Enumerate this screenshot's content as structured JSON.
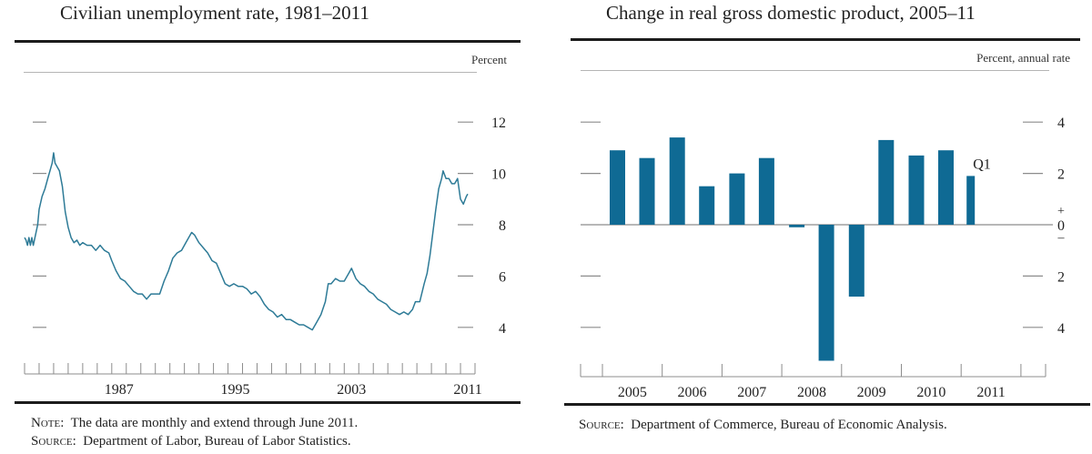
{
  "colors": {
    "line": "#2e7b97",
    "bar": "#0f6a94",
    "axis": "#8c8c8c",
    "rule": "#1c1c1c"
  },
  "left": {
    "title": "Civilian unemployment rate, 1981–2011",
    "unit_label": "Percent",
    "note_label": "Note:",
    "note_text": "The data are monthly and extend through June 2011.",
    "source_label": "Source:",
    "source_text": "Department of Labor, Bureau of Labor Statistics."
  },
  "right": {
    "title": "Change in real gross domestic product, 2005–11",
    "unit_label": "Percent, annual rate",
    "source_label": "Source:",
    "source_text": "Department of Commerce, Bureau of Economic Analysis.",
    "annotation": "Q1"
  },
  "chart_data": [
    {
      "type": "line",
      "title": "Civilian unemployment rate, 1981–2011",
      "ylabel": "Percent",
      "xlabel": "",
      "xlim": [
        1981,
        2012
      ],
      "ylim": [
        2.6,
        13.3
      ],
      "y_ticks": [
        4,
        6,
        8,
        10,
        12
      ],
      "x_tick_labels": [
        "1987",
        "1995",
        "2003",
        "2011"
      ],
      "x_tick_label_years": [
        1987,
        1995,
        2003,
        2011
      ],
      "grid": false,
      "series": [
        {
          "name": "Unemployment rate",
          "x": [
            1981.0,
            1981.1,
            1981.2,
            1981.3,
            1981.4,
            1981.5,
            1981.6,
            1981.75,
            1981.9,
            1982.0,
            1982.2,
            1982.4,
            1982.6,
            1982.75,
            1982.9,
            1983.0,
            1983.1,
            1983.2,
            1983.4,
            1983.6,
            1983.8,
            1984.0,
            1984.2,
            1984.4,
            1984.6,
            1984.8,
            1985.0,
            1985.3,
            1985.6,
            1985.9,
            1986.2,
            1986.5,
            1986.8,
            1987.0,
            1987.3,
            1987.6,
            1987.9,
            1988.2,
            1988.5,
            1988.8,
            1989.1,
            1989.4,
            1989.7,
            1990.0,
            1990.3,
            1990.6,
            1990.9,
            1991.2,
            1991.5,
            1991.8,
            1992.1,
            1992.4,
            1992.5,
            1992.7,
            1993.0,
            1993.3,
            1993.6,
            1993.9,
            1994.2,
            1994.5,
            1994.8,
            1995.1,
            1995.4,
            1995.7,
            1996.0,
            1996.3,
            1996.6,
            1996.9,
            1997.2,
            1997.5,
            1997.8,
            1998.1,
            1998.4,
            1998.7,
            1999.0,
            1999.3,
            1999.6,
            1999.9,
            2000.2,
            2000.5,
            2000.8,
            2001.1,
            2001.4,
            2001.7,
            2001.9,
            2002.1,
            2002.4,
            2002.7,
            2003.0,
            2003.3,
            2003.5,
            2003.8,
            2004.1,
            2004.4,
            2004.7,
            2005.0,
            2005.3,
            2005.6,
            2005.9,
            2006.2,
            2006.5,
            2006.8,
            2007.1,
            2007.4,
            2007.7,
            2007.9,
            2008.2,
            2008.5,
            2008.7,
            2008.9,
            2009.1,
            2009.3,
            2009.5,
            2009.7,
            2009.8,
            2010.0,
            2010.2,
            2010.4,
            2010.6,
            2010.8,
            2010.9,
            2011.0,
            2011.2,
            2011.4,
            2011.5
          ],
          "y": [
            7.5,
            7.4,
            7.2,
            7.5,
            7.2,
            7.5,
            7.2,
            7.6,
            8.0,
            8.6,
            9.1,
            9.4,
            9.8,
            10.1,
            10.4,
            10.8,
            10.4,
            10.3,
            10.1,
            9.5,
            8.5,
            7.9,
            7.5,
            7.3,
            7.4,
            7.2,
            7.3,
            7.2,
            7.2,
            7.0,
            7.2,
            7.0,
            6.9,
            6.6,
            6.2,
            5.9,
            5.8,
            5.6,
            5.4,
            5.3,
            5.3,
            5.1,
            5.3,
            5.3,
            5.3,
            5.8,
            6.2,
            6.7,
            6.9,
            7.0,
            7.3,
            7.6,
            7.7,
            7.6,
            7.3,
            7.1,
            6.9,
            6.6,
            6.5,
            6.1,
            5.7,
            5.6,
            5.7,
            5.6,
            5.6,
            5.5,
            5.3,
            5.4,
            5.2,
            4.9,
            4.7,
            4.6,
            4.4,
            4.5,
            4.3,
            4.3,
            4.2,
            4.1,
            4.1,
            4.0,
            3.9,
            4.2,
            4.5,
            5.0,
            5.7,
            5.7,
            5.9,
            5.8,
            5.8,
            6.1,
            6.3,
            5.9,
            5.7,
            5.6,
            5.4,
            5.3,
            5.1,
            5.0,
            4.9,
            4.7,
            4.6,
            4.5,
            4.6,
            4.5,
            4.7,
            5.0,
            5.0,
            5.7,
            6.1,
            6.8,
            7.7,
            8.6,
            9.4,
            9.8,
            10.1,
            9.8,
            9.8,
            9.6,
            9.6,
            9.8,
            9.4,
            9.0,
            8.8,
            9.1,
            9.2
          ]
        }
      ]
    },
    {
      "type": "bar",
      "title": "Change in real gross domestic product, 2005–11",
      "ylabel": "Percent, annual rate",
      "xlabel": "",
      "categories": [
        "2005 H1",
        "2005 H2",
        "2006 H1",
        "2006 H2",
        "2007 H1",
        "2007 H2",
        "2008 H1",
        "2008 H2",
        "2009 H1",
        "2009 H2",
        "2010 H1",
        "2010 H2",
        "2011 Q1"
      ],
      "values": [
        2.9,
        2.6,
        3.4,
        1.5,
        2.0,
        2.6,
        -0.1,
        -5.3,
        -2.8,
        3.3,
        2.7,
        2.9,
        1.9
      ],
      "ylim": [
        -6,
        4.6
      ],
      "y_ticks": [
        -4,
        -2,
        0,
        2,
        4
      ],
      "y_tick_labels": [
        "4",
        "2",
        "0",
        "2",
        "4"
      ],
      "zero_markers": {
        "plus": "+",
        "minus": "–"
      },
      "x_tick_labels": [
        "2005",
        "2006",
        "2007",
        "2008",
        "2009",
        "2010",
        "2011"
      ],
      "annotations": [
        {
          "text": "Q1",
          "category": "2011 Q1"
        }
      ],
      "grid": false
    }
  ]
}
